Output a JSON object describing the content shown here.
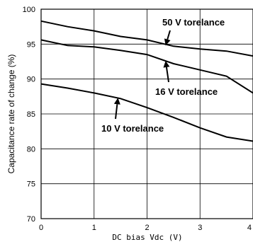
{
  "chart_data": {
    "type": "line",
    "xlabel": "DC bias Vdc (V)",
    "ylabel": "Capacitance rate of change (%)",
    "xlim": [
      0,
      4
    ],
    "ylim": [
      70,
      100
    ],
    "x_ticks": [
      0,
      1,
      2,
      3,
      4
    ],
    "y_ticks": [
      70,
      75,
      80,
      85,
      90,
      95,
      100
    ],
    "grid": true,
    "legend": "none",
    "series": [
      {
        "name": "50 V torelance",
        "x": [
          0,
          0.5,
          1.0,
          1.5,
          2.0,
          2.5,
          3.0,
          3.5,
          4.0
        ],
        "y": [
          98.3,
          97.5,
          96.9,
          96.1,
          95.6,
          94.7,
          94.3,
          94.0,
          93.3
        ]
      },
      {
        "name": "16 V torelance",
        "x": [
          0,
          0.5,
          1.0,
          1.5,
          2.0,
          2.5,
          3.0,
          3.5,
          4.0
        ],
        "y": [
          95.6,
          94.8,
          94.6,
          94.1,
          93.5,
          92.2,
          91.3,
          90.4,
          88.0
        ]
      },
      {
        "name": "10 V torelance",
        "x": [
          0,
          0.5,
          1.0,
          1.5,
          2.0,
          2.5,
          3.0,
          3.5,
          4.0
        ],
        "y": [
          89.3,
          88.7,
          88.0,
          87.2,
          85.9,
          84.5,
          83.0,
          81.7,
          81.1
        ]
      }
    ],
    "annotations": [
      {
        "text": "50 V torelance",
        "series": 0,
        "arrow_to": [
          2.35,
          94.8
        ]
      },
      {
        "text": "16 V torelance",
        "series": 1,
        "arrow_to": [
          2.35,
          92.6
        ]
      },
      {
        "text": "10 V torelance",
        "series": 2,
        "arrow_to": [
          1.45,
          87.3
        ]
      }
    ]
  }
}
